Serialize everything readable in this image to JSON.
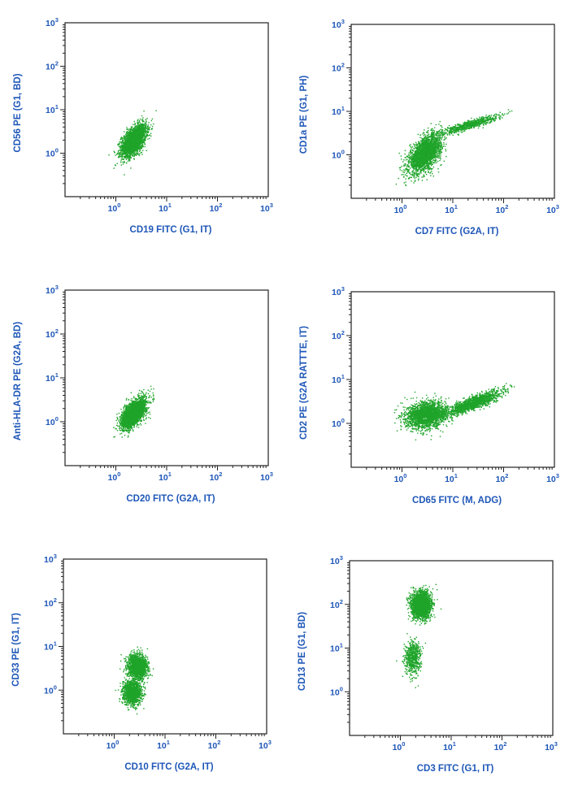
{
  "chart_data": [
    {
      "type": "scatter",
      "xlabel": "CD19 FITC (G1, IT)",
      "ylabel": "CD56 PE (G1, BD)",
      "xscale": "log",
      "yscale": "log",
      "xlim": [
        0.1,
        1000
      ],
      "ylim": [
        0.1,
        1000
      ],
      "tick_labels": [
        "10^0",
        "10^1",
        "10^2",
        "10^3"
      ],
      "color": "#1fa42a",
      "clusters": [
        {
          "x": 2.2,
          "y": 2.0,
          "x_spread": 1.7,
          "y_spread": 2.2,
          "corr": 0.55,
          "n": 2600
        }
      ]
    },
    {
      "type": "scatter",
      "xlabel": "CD7 FITC (G2A, IT)",
      "ylabel": "CD1a PE (G1, PH)",
      "xscale": "log",
      "yscale": "log",
      "xlim": [
        0.1,
        1000
      ],
      "ylim": [
        0.1,
        1000
      ],
      "tick_labels": [
        "10^0",
        "10^1",
        "10^2",
        "10^3"
      ],
      "color": "#1fa42a",
      "clusters": [
        {
          "x": 2.8,
          "y": 1.1,
          "x_spread": 2.0,
          "y_spread": 2.6,
          "corr": 0.55,
          "n": 2400
        },
        {
          "x": 20,
          "y": 5,
          "x_spread": 3.5,
          "y_spread": 1.6,
          "corr": 0.9,
          "n": 700
        }
      ]
    },
    {
      "type": "scatter",
      "xlabel": "CD20 FITC (G2A, IT)",
      "ylabel": "Anti-HLA-DR PE (G2A, BD)",
      "xscale": "log",
      "yscale": "log",
      "xlim": [
        0.1,
        1000
      ],
      "ylim": [
        0.1,
        1000
      ],
      "tick_labels": [
        "10^0",
        "10^1",
        "10^2",
        "10^3"
      ],
      "color": "#1fa42a",
      "clusters": [
        {
          "x": 2.2,
          "y": 1.6,
          "x_spread": 1.7,
          "y_spread": 2.1,
          "corr": 0.6,
          "n": 2500
        }
      ]
    },
    {
      "type": "scatter",
      "xlabel": "CD65 FITC (M, ADG)",
      "ylabel": "CD2 PE (G2A RATTTE, IT)",
      "xscale": "log",
      "yscale": "log",
      "xlim": [
        0.1,
        1000
      ],
      "ylim": [
        0.1,
        1000
      ],
      "tick_labels": [
        "10^0",
        "10^1",
        "10^2",
        "10^3"
      ],
      "color": "#1fa42a",
      "clusters": [
        {
          "x": 3.0,
          "y": 1.6,
          "x_spread": 2.4,
          "y_spread": 1.9,
          "corr": 0.2,
          "n": 2200
        },
        {
          "x": 25,
          "y": 3.0,
          "x_spread": 3.2,
          "y_spread": 1.8,
          "corr": 0.85,
          "n": 1500
        }
      ]
    },
    {
      "type": "scatter",
      "xlabel": "CD10 FITC (G2A, IT)",
      "ylabel": "CD33 PE    (G1, IT)",
      "xscale": "log",
      "yscale": "log",
      "xlim": [
        0.1,
        1000
      ],
      "ylim": [
        0.1,
        1000
      ],
      "tick_labels": [
        "10^0",
        "10^1",
        "10^2",
        "10^3"
      ],
      "color": "#1fa42a",
      "clusters": [
        {
          "x": 2.8,
          "y": 3.5,
          "x_spread": 1.5,
          "y_spread": 1.8,
          "corr": 0.0,
          "n": 1900
        },
        {
          "x": 2.2,
          "y": 0.9,
          "x_spread": 1.5,
          "y_spread": 1.8,
          "corr": 0.0,
          "n": 1300
        }
      ]
    },
    {
      "type": "scatter",
      "xlabel": "CD3 FITC (G1, IT)",
      "ylabel": "CD13 PE (G1, BD)",
      "xscale": "log",
      "yscale": "log",
      "xlim": [
        0.1,
        1000
      ],
      "ylim": [
        0.1,
        1000
      ],
      "tick_labels": [
        "10^0",
        "10^1",
        "10^2",
        "10^3"
      ],
      "color": "#1fa42a",
      "clusters": [
        {
          "x": 2.5,
          "y": 100,
          "x_spread": 1.5,
          "y_spread": 1.9,
          "corr": 0.0,
          "n": 2600
        },
        {
          "x": 1.7,
          "y": 6,
          "x_spread": 1.4,
          "y_spread": 2.3,
          "corr": 0.0,
          "n": 600
        }
      ]
    }
  ]
}
